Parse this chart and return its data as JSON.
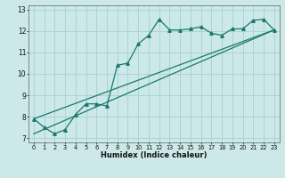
{
  "title": "",
  "xlabel": "Humidex (Indice chaleur)",
  "ylabel": "",
  "bg_color": "#cce8e8",
  "grid_color": "#aad4d4",
  "line_color": "#1a7a6a",
  "xlim": [
    -0.5,
    23.5
  ],
  "ylim": [
    6.8,
    13.2
  ],
  "xticks": [
    0,
    1,
    2,
    3,
    4,
    5,
    6,
    7,
    8,
    9,
    10,
    11,
    12,
    13,
    14,
    15,
    16,
    17,
    18,
    19,
    20,
    21,
    22,
    23
  ],
  "yticks": [
    7,
    8,
    9,
    10,
    11,
    12,
    13
  ],
  "series1_x": [
    0,
    1,
    2,
    3,
    4,
    5,
    6,
    7,
    8,
    9,
    10,
    11,
    12,
    13,
    14,
    15,
    16,
    17,
    18,
    19,
    20,
    21,
    22,
    23
  ],
  "series1_y": [
    7.9,
    7.5,
    7.2,
    7.4,
    8.1,
    8.6,
    8.6,
    8.5,
    10.4,
    10.5,
    11.4,
    11.8,
    12.55,
    12.05,
    12.05,
    12.1,
    12.2,
    11.9,
    11.8,
    12.1,
    12.1,
    12.5,
    12.55,
    12.05
  ],
  "series2_x": [
    0,
    23
  ],
  "series2_y": [
    7.9,
    12.05
  ],
  "series3_x": [
    0,
    23
  ],
  "series3_y": [
    7.2,
    12.05
  ],
  "xlabel_fontsize": 6.0,
  "tick_fontsize": 4.8,
  "ytick_fontsize": 5.5
}
